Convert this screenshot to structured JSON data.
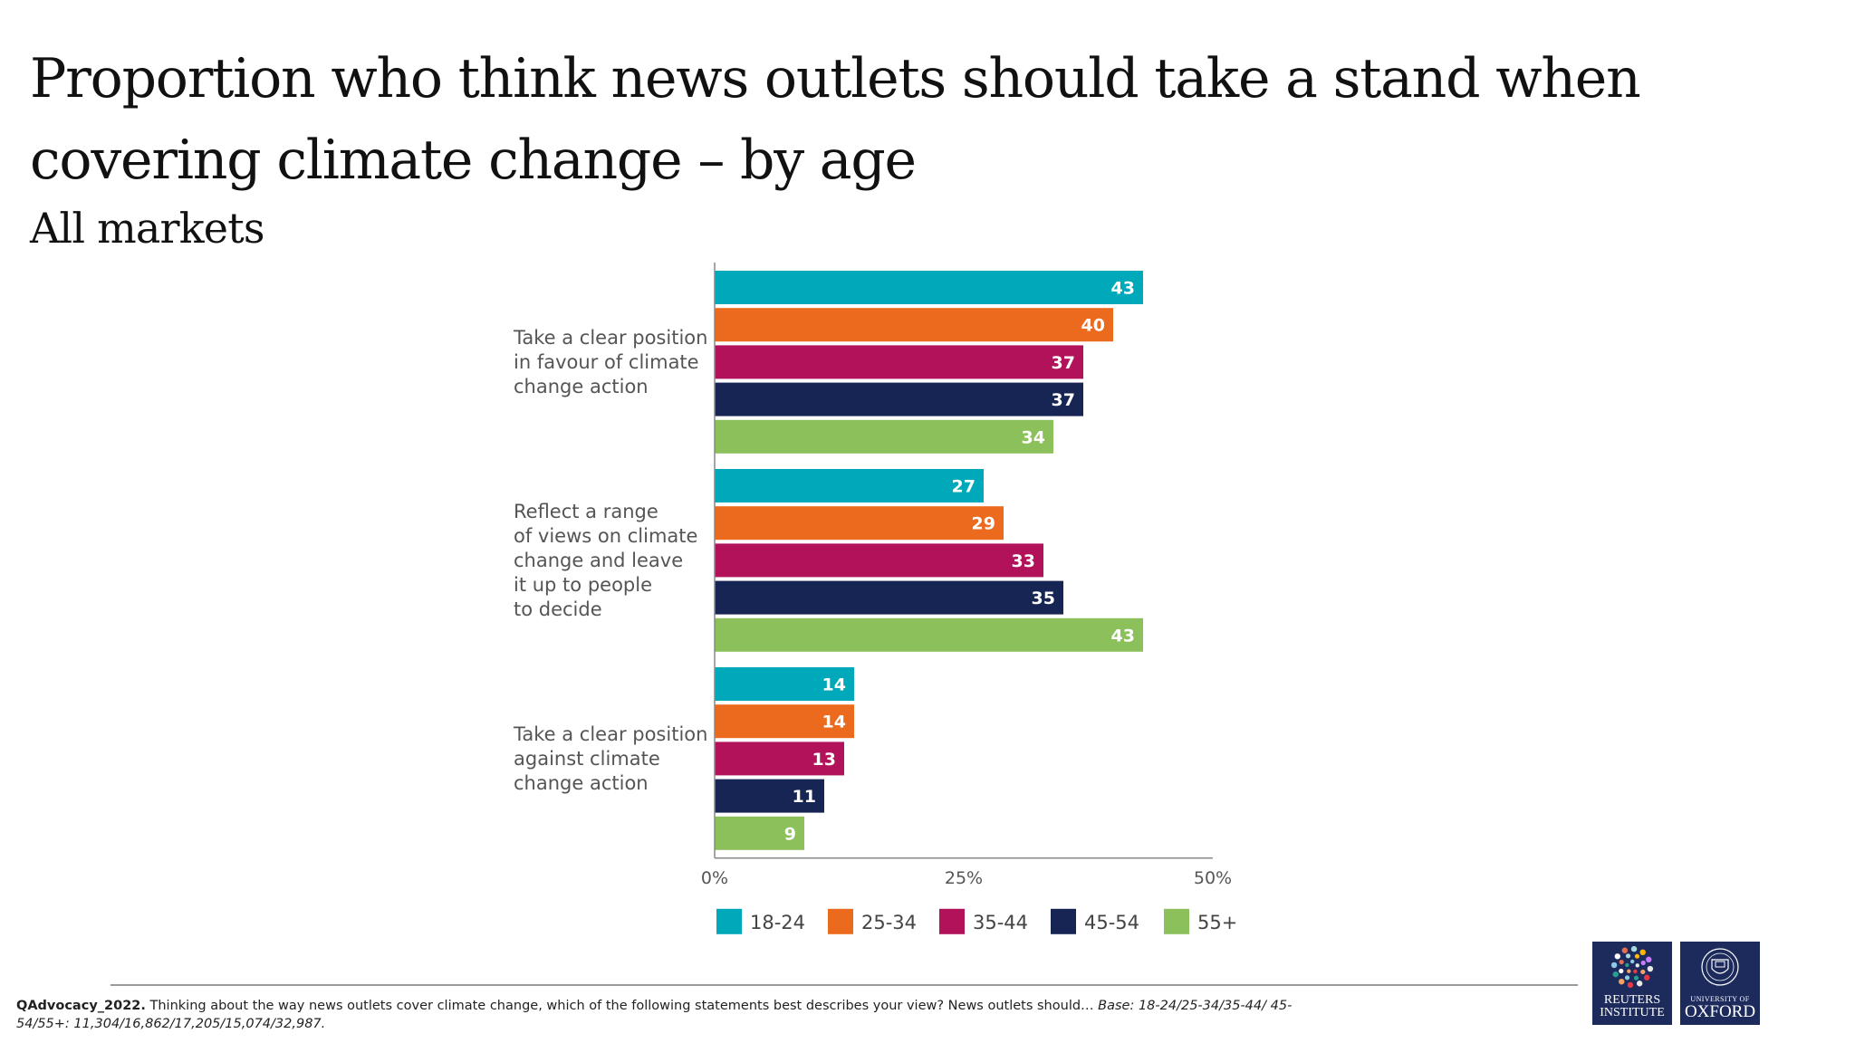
{
  "title": "Proportion who think news outlets should take a stand when covering climate change – by age",
  "subtitle": "All markets",
  "chart_data": {
    "type": "bar",
    "orientation": "horizontal",
    "categories": [
      "Take a clear position in favour of climate change action",
      "Reflect a range of views on climate change and leave it up to people to decide",
      "Take a clear position against climate change action"
    ],
    "category_lines": [
      [
        "Take a clear position",
        "in favour of climate",
        "change action"
      ],
      [
        "Reflect a range",
        "of views on climate",
        "change and leave",
        "it up to people",
        "to decide"
      ],
      [
        "Take a clear position",
        "against climate",
        "change action"
      ]
    ],
    "series": [
      {
        "name": "18-24",
        "color": "#00a9b9",
        "values": [
          43,
          27,
          14
        ]
      },
      {
        "name": "25-34",
        "color": "#ec6a1e",
        "values": [
          40,
          29,
          14
        ]
      },
      {
        "name": "35-44",
        "color": "#b2125a",
        "values": [
          37,
          33,
          13
        ]
      },
      {
        "name": "45-54",
        "color": "#172554",
        "values": [
          37,
          35,
          11
        ]
      },
      {
        "name": "55+",
        "color": "#8cc05a",
        "values": [
          34,
          43,
          9
        ]
      }
    ],
    "xlim": [
      0,
      50
    ],
    "xticks": [
      "0%",
      "25%",
      "50%"
    ],
    "legend_position": "bottom",
    "grid": false
  },
  "footnote": {
    "code": "QAdvocacy_2022.",
    "question": " Thinking about the way news outlets cover climate change, which of the following statements best describes your view? News outlets should… ",
    "base": "Base: 18-24/25-34/35-44/ 45-54/55+: 11,304/16,862/17,205/15,074/32,987."
  },
  "logos": {
    "reuters_line1": "REUTERS",
    "reuters_line2": "INSTITUTE",
    "oxford_small": "UNIVERSITY OF",
    "oxford_big": "OXFORD"
  }
}
